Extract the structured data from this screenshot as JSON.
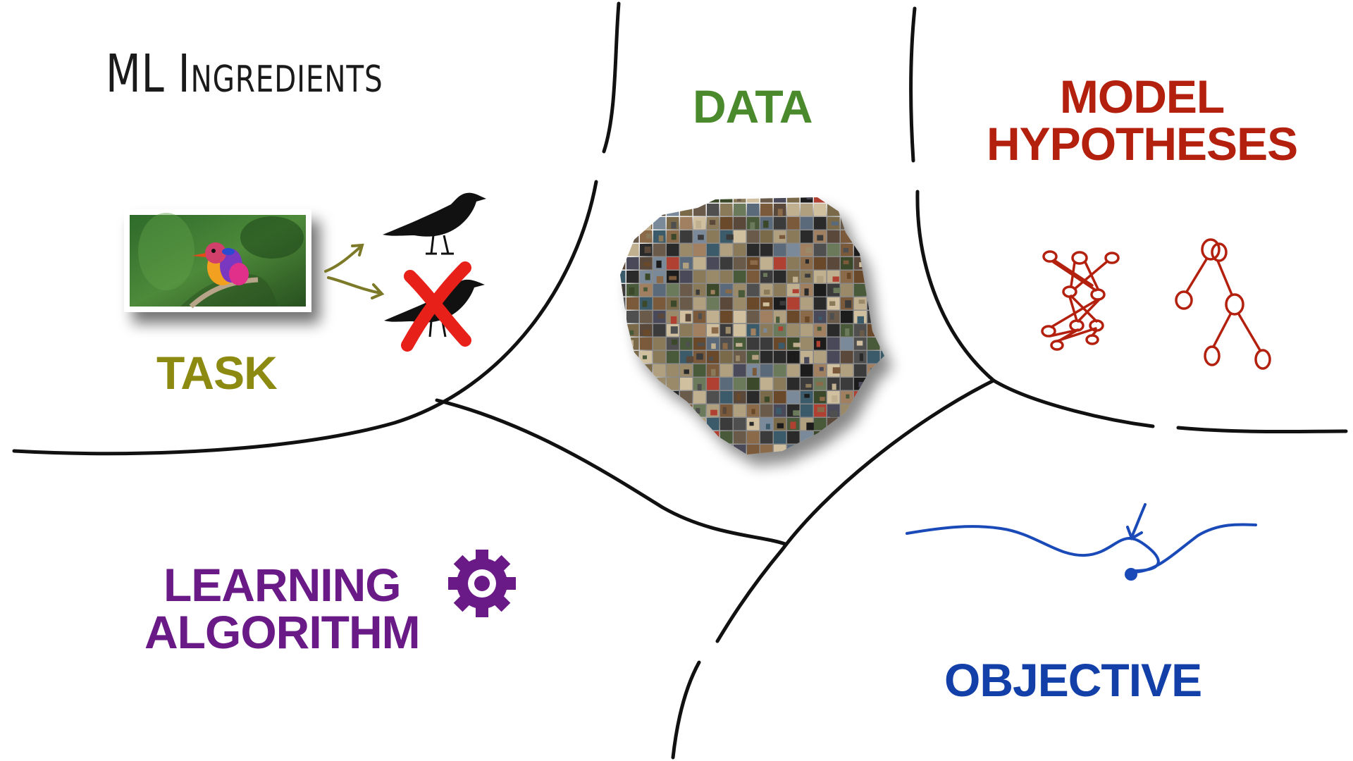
{
  "title": "ML Ingredients",
  "labels": {
    "task": "TASK",
    "data": "DATA",
    "model_line1": "MODEL",
    "model_line2": "HYPOTHESES",
    "learning_line1": "LEARNING",
    "learning_line2": "ALGORITHM",
    "objective": "OBJECTIVE"
  },
  "colors": {
    "task": "#8c8a10",
    "data": "#4a8a2c",
    "model": "#b3200e",
    "learning": "#6a1a86",
    "objective": "#1240a8",
    "lines": "#111111"
  },
  "icons": {
    "task_image": "kingfisher-photo",
    "positive_class": "crow-silhouette-icon",
    "negative_class": "crossed-crow-icon",
    "data_cloud": "image-mosaic",
    "models": "graph-and-tree-icons",
    "learning": "gear-icon",
    "objective": "loss-curve-icon"
  }
}
